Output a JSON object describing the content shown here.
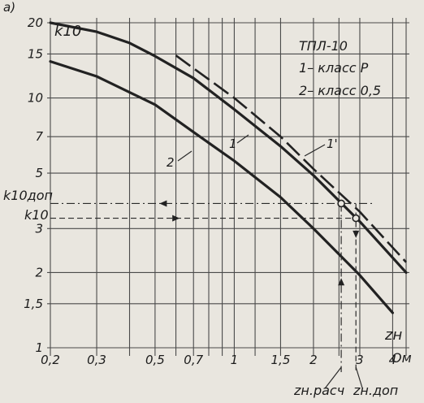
{
  "chart_data": {
    "type": "line",
    "panel_label": "a)",
    "ylabel": "k10",
    "xlabel": "zн",
    "xscale": "log",
    "yscale": "log",
    "xlim": [
      0.2,
      4.5
    ],
    "ylim": [
      1,
      20
    ],
    "x_ticks": [
      {
        "value": 0.2,
        "label": "0,2"
      },
      {
        "value": 0.3,
        "label": "0,3"
      },
      {
        "value": 0.5,
        "label": "0,5"
      },
      {
        "value": 0.7,
        "label": "0,7"
      },
      {
        "value": 1,
        "label": "1"
      },
      {
        "value": 1.5,
        "label": "1,5"
      },
      {
        "value": 2,
        "label": "2"
      },
      {
        "value": 3,
        "label": "3"
      },
      {
        "value": 4,
        "label": "4"
      }
    ],
    "x_unit_label": "Ом",
    "y_ticks": [
      {
        "value": 1,
        "label": "1"
      },
      {
        "value": 1.5,
        "label": "1,5"
      },
      {
        "value": 2,
        "label": "2"
      },
      {
        "value": 3,
        "label": "3"
      },
      {
        "value": 5,
        "label": "5"
      },
      {
        "value": 7,
        "label": "7"
      },
      {
        "value": 10,
        "label": "10"
      },
      {
        "value": 15,
        "label": "15"
      },
      {
        "value": 20,
        "label": "20"
      }
    ],
    "minor_x_gridlines": [
      0.4,
      0.6,
      0.8,
      0.9,
      1.2,
      2.5
    ],
    "legend": [
      "ТПЛ-10",
      "1– класс Р",
      "2– класс 0,5"
    ],
    "series": [
      {
        "name": "1",
        "style": "solid",
        "x": [
          0.2,
          0.3,
          0.4,
          0.5,
          0.7,
          1.0,
          1.5,
          2.0,
          3.0,
          4.5
        ],
        "y": [
          20,
          18.4,
          16.6,
          14.7,
          12.0,
          9.0,
          6.4,
          4.9,
          3.2,
          2.0
        ]
      },
      {
        "name": "2",
        "style": "solid",
        "x": [
          0.2,
          0.3,
          0.5,
          0.7,
          1.0,
          1.5,
          2.0,
          3.0,
          4.0
        ],
        "y": [
          14,
          12.2,
          9.4,
          7.3,
          5.6,
          4.0,
          3.0,
          1.95,
          1.38
        ]
      },
      {
        "name": "1'",
        "style": "dashed",
        "x": [
          0.6,
          1.0,
          1.5,
          2.0,
          3.0,
          4.5
        ],
        "y": [
          14.8,
          10.0,
          7.0,
          5.2,
          3.5,
          2.2
        ]
      }
    ],
    "series_labels": [
      "1",
      "1'",
      "2"
    ],
    "annotations": {
      "k10_dop": {
        "label": "k10доп",
        "y": 3.78,
        "x_point": 2.55
      },
      "k10": {
        "label": "k10",
        "y": 3.3,
        "x_point": 2.9
      },
      "z_rasch": {
        "label": "zн.расч",
        "x": 2.55
      },
      "z_dop": {
        "label": "zн.доп",
        "x": 2.9
      }
    }
  }
}
